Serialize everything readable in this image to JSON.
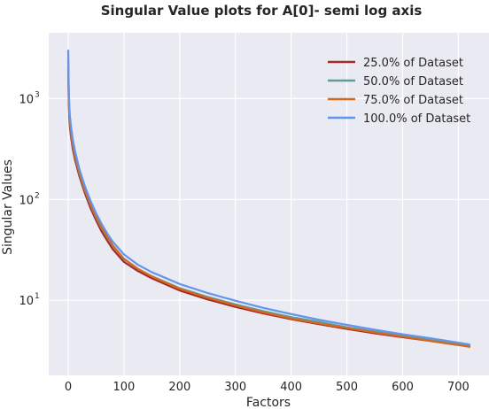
{
  "chart_data": {
    "type": "line",
    "title": "Singular Value plots for A[0]- semi log axis",
    "xlabel": "Factors",
    "ylabel": "Singular Values",
    "yscale": "log",
    "xlim": [
      -35,
      755
    ],
    "ylim": [
      1.8,
      4500
    ],
    "grid": true,
    "legend_position": "top-right",
    "x_ticks": [
      0,
      100,
      200,
      300,
      400,
      500,
      600,
      700
    ],
    "x_tick_labels": [
      "0",
      "100",
      "200",
      "300",
      "400",
      "500",
      "600",
      "700"
    ],
    "y_ticks": [
      10,
      100,
      1000
    ],
    "y_tick_base": "10",
    "y_tick_exponents": [
      "1",
      "2",
      "3"
    ],
    "background_color": "#eaeaf2",
    "series": [
      {
        "name": "25.0% of Dataset",
        "color": "#a52a2a",
        "x": [
          0,
          1,
          2,
          3,
          5,
          8,
          12,
          20,
          30,
          40,
          50,
          60,
          70,
          80,
          100,
          125,
          150,
          200,
          250,
          300,
          350,
          400,
          450,
          500,
          550,
          600,
          650,
          700,
          720
        ],
        "values": [
          2000,
          900,
          620,
          520,
          420,
          320,
          250,
          170,
          115,
          82,
          62,
          48,
          39,
          32,
          24,
          19.5,
          16.5,
          12.5,
          10.2,
          8.6,
          7.4,
          6.5,
          5.8,
          5.2,
          4.7,
          4.3,
          3.95,
          3.6,
          3.5
        ]
      },
      {
        "name": "50.0% of Dataset",
        "color": "#5f9e9a",
        "x": [
          0,
          1,
          2,
          3,
          5,
          8,
          12,
          20,
          30,
          40,
          50,
          60,
          70,
          80,
          100,
          125,
          150,
          200,
          250,
          300,
          350,
          400,
          450,
          500,
          550,
          600,
          650,
          700,
          720
        ],
        "values": [
          2300,
          1000,
          700,
          580,
          460,
          350,
          270,
          180,
          122,
          88,
          66,
          52,
          42,
          34.5,
          25.5,
          20.5,
          17.3,
          13.2,
          10.8,
          9.1,
          7.8,
          6.8,
          6.1,
          5.4,
          4.9,
          4.45,
          4.05,
          3.7,
          3.55
        ]
      },
      {
        "name": "75.0% of Dataset",
        "color": "#d2691e",
        "x": [
          0,
          1,
          2,
          3,
          5,
          8,
          12,
          20,
          30,
          40,
          50,
          60,
          70,
          80,
          100,
          125,
          150,
          200,
          250,
          300,
          350,
          400,
          450,
          500,
          550,
          600,
          650,
          700,
          720
        ],
        "values": [
          2500,
          1050,
          730,
          600,
          480,
          360,
          280,
          185,
          125,
          90,
          68,
          53,
          43,
          35,
          25.8,
          20.5,
          17.2,
          13,
          10.6,
          8.9,
          7.6,
          6.6,
          5.9,
          5.3,
          4.8,
          4.35,
          3.95,
          3.6,
          3.45
        ]
      },
      {
        "name": "100.0% of Dataset",
        "color": "#6495ed",
        "x": [
          0,
          1,
          2,
          3,
          5,
          8,
          12,
          20,
          30,
          40,
          50,
          60,
          70,
          80,
          100,
          125,
          150,
          200,
          250,
          300,
          350,
          400,
          450,
          500,
          550,
          600,
          650,
          700,
          720
        ],
        "values": [
          3000,
          1200,
          820,
          670,
          530,
          400,
          305,
          200,
          135,
          97,
          73,
          57,
          46,
          38,
          28.5,
          22.5,
          19,
          14.5,
          11.8,
          9.9,
          8.4,
          7.3,
          6.4,
          5.7,
          5.1,
          4.6,
          4.2,
          3.8,
          3.65
        ]
      }
    ]
  }
}
